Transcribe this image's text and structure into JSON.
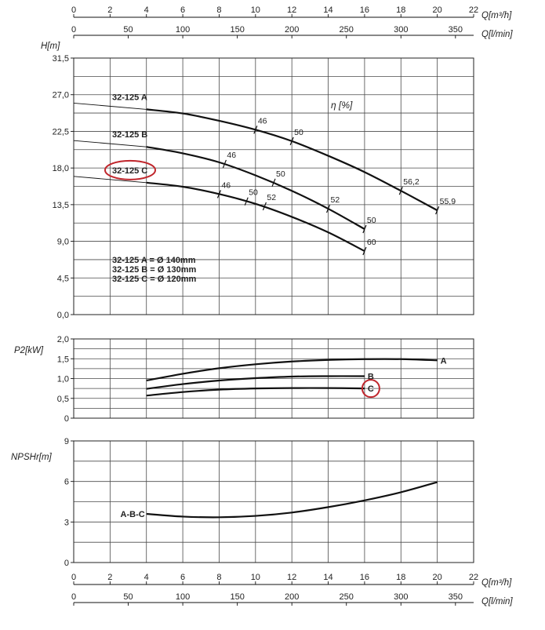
{
  "chart_data": [
    {
      "type": "line",
      "panel": "head",
      "ylabel": "H[m]",
      "ylim": [
        0,
        31.5
      ],
      "y_ticks": [
        "0,0",
        "4,5",
        "9,0",
        "13,5",
        "18,0",
        "22,5",
        "27,0",
        "31,5"
      ],
      "x_top_label": "Q[m³/h]",
      "x_top_ticks": [
        "0",
        "2",
        "4",
        "6",
        "8",
        "10",
        "12",
        "14",
        "16",
        "18",
        "20",
        "22"
      ],
      "x_bottom_label": "Q[l/min]",
      "x_bottom_ticks": [
        "0",
        "50",
        "100",
        "150",
        "200",
        "250",
        "300",
        "350"
      ],
      "xlim": [
        0,
        22
      ],
      "efficiency_title": "η [%]",
      "series": [
        {
          "name": "32-125 A",
          "x": [
            4,
            6,
            8,
            10,
            12,
            14,
            16,
            18,
            20
          ],
          "values": [
            25.2,
            24.7,
            23.8,
            22.7,
            21.3,
            19.5,
            17.5,
            15.2,
            12.8
          ]
        },
        {
          "name": "32-125 B",
          "x": [
            4,
            6,
            8,
            10,
            12,
            14,
            16
          ],
          "values": [
            20.6,
            19.8,
            18.7,
            17.1,
            15.2,
            13.0,
            10.5
          ]
        },
        {
          "name": "32-125 C",
          "x": [
            4,
            6,
            8,
            10,
            12,
            14,
            16
          ],
          "values": [
            16.2,
            15.7,
            14.8,
            13.6,
            12.0,
            10.1,
            7.8
          ]
        }
      ],
      "efficiency_points": [
        {
          "series": "32-125 A",
          "label": "46",
          "x": 10,
          "y": 22.7
        },
        {
          "series": "32-125 A",
          "label": "50",
          "x": 12,
          "y": 21.3
        },
        {
          "series": "32-125 A",
          "label": "56,2",
          "x": 18,
          "y": 15.2
        },
        {
          "series": "32-125 A",
          "label": "55,9",
          "x": 20,
          "y": 12.8
        },
        {
          "series": "32-125 B",
          "label": "46",
          "x": 8.3,
          "y": 18.5
        },
        {
          "series": "32-125 B",
          "label": "50",
          "x": 11,
          "y": 16.2
        },
        {
          "series": "32-125 B",
          "label": "52",
          "x": 14,
          "y": 13.0
        },
        {
          "series": "32-125 B",
          "label": "50",
          "x": 16,
          "y": 10.5
        },
        {
          "series": "32-125 C",
          "label": "46",
          "x": 8,
          "y": 14.8
        },
        {
          "series": "32-125 C",
          "label": "50",
          "x": 9.5,
          "y": 13.9
        },
        {
          "series": "32-125 C",
          "label": "52",
          "x": 10.5,
          "y": 13.3
        },
        {
          "series": "32-125 C",
          "label": "60",
          "x": 16,
          "y": 7.8
        }
      ],
      "legend_lines": [
        "32-125 A = Ø 140mm",
        "32-125 B = Ø 130mm",
        "32-125 C = Ø 120mm"
      ],
      "highlighted_series": "32-125 C",
      "grid": true
    },
    {
      "type": "line",
      "panel": "power",
      "ylabel": "P2[kW]",
      "ylim": [
        0,
        2.0
      ],
      "y_ticks": [
        "0",
        "0,5",
        "1,0",
        "1,5",
        "2,0"
      ],
      "xlim": [
        0,
        22
      ],
      "series": [
        {
          "name": "A",
          "x": [
            4,
            6,
            8,
            10,
            12,
            14,
            16,
            18,
            20
          ],
          "values": [
            0.95,
            1.12,
            1.26,
            1.36,
            1.43,
            1.47,
            1.49,
            1.49,
            1.46
          ]
        },
        {
          "name": "B",
          "x": [
            4,
            6,
            8,
            10,
            12,
            14,
            16
          ],
          "values": [
            0.74,
            0.86,
            0.95,
            1.01,
            1.05,
            1.06,
            1.06
          ]
        },
        {
          "name": "C",
          "x": [
            4,
            6,
            8,
            10,
            12,
            14,
            16
          ],
          "values": [
            0.57,
            0.66,
            0.72,
            0.75,
            0.76,
            0.76,
            0.75
          ]
        }
      ],
      "highlighted_series": "C",
      "grid": true
    },
    {
      "type": "line",
      "panel": "npshr",
      "ylabel": "NPSHr[m]",
      "ylim": [
        0,
        9
      ],
      "y_ticks": [
        "0",
        "3",
        "6",
        "9"
      ],
      "x_top_label": "Q[m³/h]",
      "x_top_ticks": [
        "0",
        "2",
        "4",
        "6",
        "8",
        "10",
        "12",
        "14",
        "16",
        "18",
        "20",
        "22"
      ],
      "x_bottom_label": "Q[l/min]",
      "x_bottom_ticks": [
        "0",
        "50",
        "100",
        "150",
        "200",
        "250",
        "300",
        "350"
      ],
      "xlim": [
        0,
        22
      ],
      "series": [
        {
          "name": "A-B-C",
          "x": [
            4,
            6,
            8,
            10,
            12,
            14,
            16,
            18,
            20
          ],
          "values": [
            3.6,
            3.4,
            3.35,
            3.45,
            3.7,
            4.1,
            4.6,
            5.2,
            5.95
          ]
        }
      ],
      "grid": true
    }
  ]
}
